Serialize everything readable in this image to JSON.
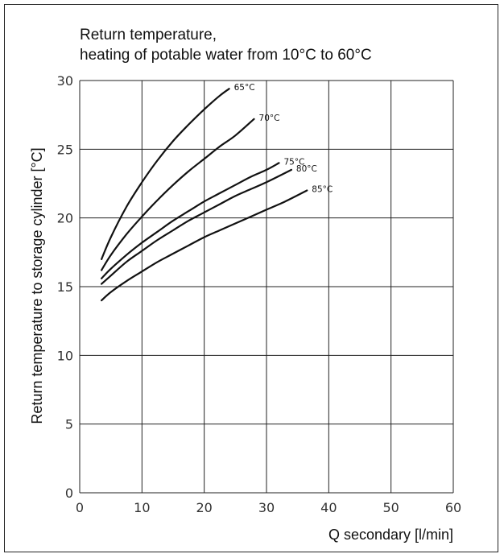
{
  "chart_data": {
    "type": "line",
    "title_lines": [
      "Return temperature,",
      "heating of potable water from 10°C to 60°C"
    ],
    "xlabel": "Q secondary [l/min]",
    "ylabel": "Return temperature to storage cylinder [°C]",
    "xlim": [
      0,
      60
    ],
    "ylim": [
      0,
      30
    ],
    "x_ticks": [
      0,
      10,
      20,
      30,
      40,
      50,
      60
    ],
    "y_ticks": [
      0,
      5,
      10,
      15,
      20,
      25,
      30
    ],
    "grid": true,
    "series": [
      {
        "name": "65°C",
        "points": [
          [
            3.5,
            17.0
          ],
          [
            5,
            18.6
          ],
          [
            7.5,
            20.8
          ],
          [
            10,
            22.6
          ],
          [
            12.5,
            24.2
          ],
          [
            15,
            25.6
          ],
          [
            17.5,
            26.8
          ],
          [
            20,
            27.9
          ],
          [
            22.5,
            28.9
          ],
          [
            24,
            29.4
          ]
        ]
      },
      {
        "name": "70°C",
        "points": [
          [
            3.5,
            16.2
          ],
          [
            5,
            17.3
          ],
          [
            7.5,
            18.8
          ],
          [
            10,
            20.1
          ],
          [
            12.5,
            21.3
          ],
          [
            15,
            22.4
          ],
          [
            17.5,
            23.4
          ],
          [
            20,
            24.3
          ],
          [
            22.5,
            25.2
          ],
          [
            25,
            26.0
          ],
          [
            28,
            27.2
          ]
        ]
      },
      {
        "name": "75°C",
        "points": [
          [
            3.5,
            15.6
          ],
          [
            5,
            16.3
          ],
          [
            7.5,
            17.3
          ],
          [
            10,
            18.2
          ],
          [
            12.5,
            19.0
          ],
          [
            15,
            19.8
          ],
          [
            17.5,
            20.5
          ],
          [
            20,
            21.2
          ],
          [
            22.5,
            21.8
          ],
          [
            25,
            22.4
          ],
          [
            27.5,
            23.0
          ],
          [
            30,
            23.5
          ],
          [
            32,
            24.0
          ]
        ]
      },
      {
        "name": "80°C",
        "points": [
          [
            3.5,
            15.2
          ],
          [
            5,
            15.8
          ],
          [
            7.5,
            16.8
          ],
          [
            10,
            17.6
          ],
          [
            12.5,
            18.4
          ],
          [
            15,
            19.1
          ],
          [
            17.5,
            19.8
          ],
          [
            20,
            20.4
          ],
          [
            22.5,
            21.0
          ],
          [
            25,
            21.6
          ],
          [
            27.5,
            22.1
          ],
          [
            30,
            22.6
          ],
          [
            34,
            23.5
          ]
        ]
      },
      {
        "name": "85°C",
        "points": [
          [
            3.5,
            14.0
          ],
          [
            5,
            14.6
          ],
          [
            7.5,
            15.4
          ],
          [
            10,
            16.1
          ],
          [
            12.5,
            16.8
          ],
          [
            15,
            17.4
          ],
          [
            17.5,
            18.0
          ],
          [
            20,
            18.6
          ],
          [
            22.5,
            19.1
          ],
          [
            25,
            19.6
          ],
          [
            27.5,
            20.1
          ],
          [
            30,
            20.6
          ],
          [
            33,
            21.2
          ],
          [
            36.5,
            22.0
          ]
        ]
      }
    ]
  }
}
